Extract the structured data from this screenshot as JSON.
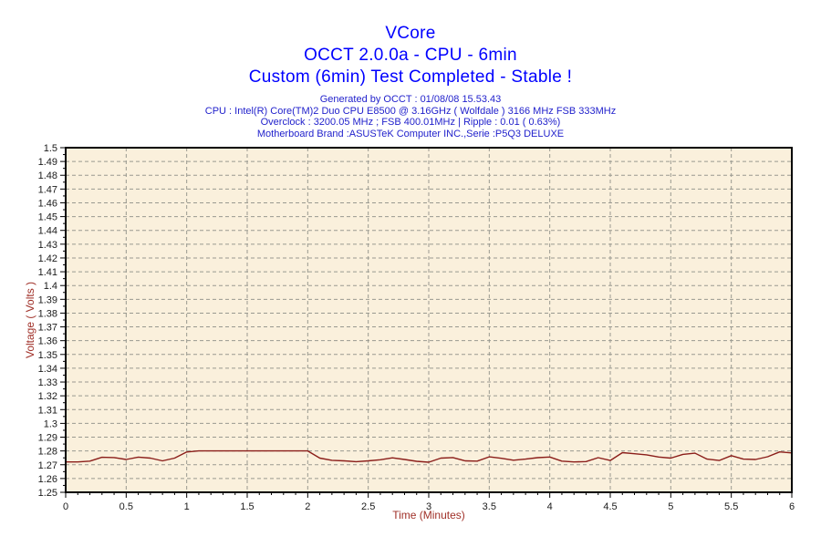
{
  "header": {
    "title": "VCore",
    "test_line": "OCCT 2.0.0a - CPU - 6min",
    "status_line": "Custom (6min) Test Completed - Stable !",
    "info_lines": [
      "Generated by OCCT : 01/08/08 15.53.43",
      "CPU : Intel(R) Core(TM)2 Duo CPU E8500 @ 3.16GHz ( Wolfdale ) 3166 MHz FSB 333MHz",
      "Overclock : 3200.05 MHz ; FSB 400.01MHz | Ripple : 0.01 ( 0.63%)",
      "Motherboard Brand :ASUSTeK Computer INC.,Serie :P5Q3 DELUXE"
    ]
  },
  "colors": {
    "title_blue": "#0000FF",
    "info_blue": "#2222CC",
    "axis_label_red": "#A03028",
    "series_red": "#8B1E1A",
    "plot_bg": "#FAF0DC",
    "grid_gray": "#999990",
    "axis_black": "#000000",
    "tick_label": "#1A1A1A"
  },
  "chart_data": {
    "type": "line",
    "title": "VCore",
    "xlabel": "Time (Minutes)",
    "ylabel": "Voltage ( Volts )",
    "xlim": [
      0,
      6
    ],
    "ylim": [
      1.25,
      1.5
    ],
    "x_major_step": 0.5,
    "x_minor_step": 0.1,
    "y_major_step": 0.01,
    "y_minor_step": 0.005,
    "grid": true,
    "grid_style": "dashed",
    "legend_position": "none",
    "x_tick_labels": [
      "0",
      "0.5",
      "1",
      "1.5",
      "2",
      "2.5",
      "3",
      "3.5",
      "4",
      "4.5",
      "5",
      "5.5",
      "6"
    ],
    "y_tick_labels": [
      "1.25",
      "1.26",
      "1.27",
      "1.28",
      "1.29",
      "1.3",
      "1.31",
      "1.32",
      "1.33",
      "1.34",
      "1.35",
      "1.36",
      "1.37",
      "1.38",
      "1.39",
      "1.4",
      "1.41",
      "1.42",
      "1.43",
      "1.44",
      "1.45",
      "1.46",
      "1.47",
      "1.48",
      "1.49",
      "1.5"
    ],
    "series": [
      {
        "name": "VCore",
        "x": [
          0.0,
          0.1,
          0.2,
          0.3,
          0.4,
          0.5,
          0.6,
          0.7,
          0.8,
          0.9,
          1.0,
          1.1,
          1.2,
          1.3,
          1.4,
          1.5,
          1.6,
          1.7,
          1.8,
          1.9,
          2.0,
          2.1,
          2.2,
          2.3,
          2.4,
          2.5,
          2.6,
          2.7,
          2.8,
          2.9,
          3.0,
          3.1,
          3.2,
          3.3,
          3.4,
          3.5,
          3.6,
          3.7,
          3.8,
          3.9,
          4.0,
          4.1,
          4.2,
          4.3,
          4.4,
          4.5,
          4.6,
          4.7,
          4.8,
          4.9,
          5.0,
          5.1,
          5.2,
          5.3,
          5.4,
          5.5,
          5.6,
          5.7,
          5.8,
          5.9,
          6.0
        ],
        "y": [
          1.272,
          1.272,
          1.2726,
          1.2754,
          1.2752,
          1.2738,
          1.2755,
          1.2748,
          1.2728,
          1.2748,
          1.2792,
          1.28,
          1.28,
          1.28,
          1.28,
          1.28,
          1.28,
          1.28,
          1.28,
          1.28,
          1.28,
          1.2748,
          1.2732,
          1.2728,
          1.2722,
          1.2728,
          1.2736,
          1.275,
          1.2738,
          1.2725,
          1.2718,
          1.2748,
          1.2752,
          1.2728,
          1.2726,
          1.2757,
          1.2747,
          1.2733,
          1.2741,
          1.2751,
          1.2756,
          1.2726,
          1.272,
          1.2723,
          1.2751,
          1.2731,
          1.2788,
          1.278,
          1.2772,
          1.2756,
          1.2748,
          1.2775,
          1.2784,
          1.2741,
          1.2731,
          1.2766,
          1.2741,
          1.2738,
          1.2758,
          1.2793,
          1.2786
        ]
      }
    ]
  }
}
